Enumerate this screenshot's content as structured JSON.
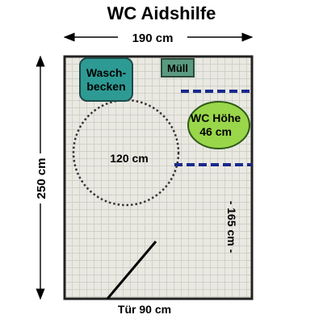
{
  "title": "WC Aidshilfe",
  "dims": {
    "width_label": "190 cm",
    "height_label": "250 cm",
    "circle_label": "120 cm",
    "side_label": "- 165 cm -",
    "door_label": "Tür 90 cm"
  },
  "fixtures": {
    "sink": "Wasch-\nbecken",
    "bin": "Müll",
    "wc": "WC Höhe\n46 cm"
  },
  "colors": {
    "floor_tile": "#e9e9e2",
    "grout": "#c9c9c0",
    "sink_fill": "#2e9a94",
    "bin_fill": "#5a9a80",
    "wc_fill": "#99d64a",
    "rail": "#1a2a8c"
  }
}
